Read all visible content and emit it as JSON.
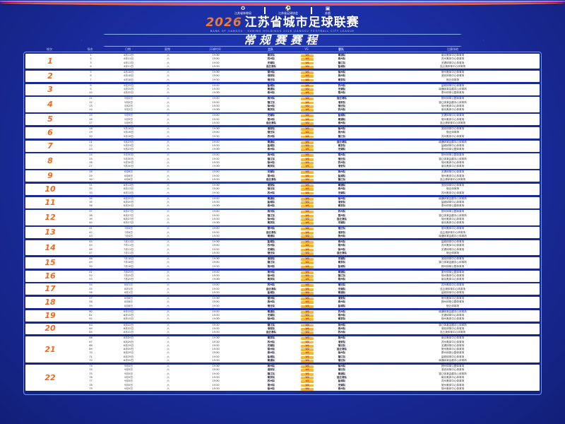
{
  "header": {
    "logos": [
      "江苏省体育局",
      "江苏省足球协会",
      "苏超"
    ],
    "year": "2026",
    "title": "江苏省城市足球联赛",
    "subtitle": "BANK OF JIANGSU · SUNING HOLDINGS 2026 JIANGSU FOOTBALL CITY LEAGUE",
    "banner": "常规赛赛程"
  },
  "colors": {
    "background": "#1a2c9e",
    "accent": "#ef6a1c",
    "vs_badge": "#f6b830"
  },
  "table": {
    "columns": [
      "轮次",
      "场次",
      "日期",
      "星期",
      "开球时间",
      "主队",
      "VS",
      "客队",
      "比赛场地"
    ],
    "vs_label": "VS",
    "rounds": [
      {
        "label": "1",
        "matches": [
          [
            "1",
            "4月11日",
            "六",
            "19:30",
            "南京队",
            "南通队",
            "南京奥体中心体育场"
          ],
          [
            "2",
            "4月11日",
            "六",
            "19:30",
            "苏州队",
            "泰州队",
            "苏州奥体中心体育场"
          ],
          [
            "3",
            "4月11日",
            "六",
            "19:30",
            "无锡队",
            "镇江队",
            "无锡体育中心体育场"
          ],
          [
            "4",
            "4月11日",
            "六",
            "19:30",
            "连云港队",
            "盐城队",
            "连云港体育中心体育场"
          ]
        ]
      },
      {
        "label": "2",
        "matches": [
          [
            "5",
            "4月18日",
            "六",
            "19:30",
            "常州队",
            "徐州队",
            "常州奥体中心体育场"
          ],
          [
            "6",
            "4月18日",
            "六",
            "19:30",
            "淮安队",
            "扬州队",
            "淮安体育中心体育场"
          ],
          [
            "7",
            "4月18日",
            "六",
            "19:30",
            "宿迁队",
            "南京队",
            "宿迁体育场"
          ]
        ]
      },
      {
        "label": "3",
        "matches": [
          [
            "8",
            "4月25日",
            "六",
            "19:30",
            "盐城队",
            "苏州队",
            "盐城体育中心体育场"
          ],
          [
            "9",
            "4月25日",
            "六",
            "19:30",
            "南通队",
            "无锡队",
            "南通体育会展中心体育场"
          ],
          [
            "10",
            "4月25日",
            "六",
            "19:30",
            "泰州队",
            "常州队",
            "泰州体育公园体育场"
          ]
        ]
      },
      {
        "label": "4",
        "matches": [
          [
            "11",
            "5月2日",
            "六",
            "19:30",
            "扬州队",
            "连云港队",
            "扬州体育公园体育场"
          ],
          [
            "12",
            "5月2日",
            "六",
            "19:30",
            "镇江队",
            "淮安队",
            "镇江体育会展中心体育场"
          ],
          [
            "13",
            "5月2日",
            "六",
            "19:30",
            "徐州队",
            "宿迁队",
            "徐州奥体中心体育场"
          ],
          [
            "14",
            "5月2日",
            "六",
            "19:30",
            "南京队",
            "苏州队",
            "南京奥体中心体育场"
          ]
        ]
      },
      {
        "label": "5",
        "matches": [
          [
            "15",
            "5月9日",
            "六",
            "19:30",
            "无锡队",
            "盐城队",
            "无锡体育中心体育场"
          ],
          [
            "16",
            "5月9日",
            "六",
            "19:30",
            "常州队",
            "南通队",
            "常州奥体中心体育场"
          ],
          [
            "17",
            "5月9日",
            "六",
            "19:30",
            "连云港队",
            "泰州队",
            "连云港体育中心体育场"
          ]
        ]
      },
      {
        "label": "6",
        "matches": [
          [
            "18",
            "5月16日",
            "六",
            "19:30",
            "淮安队",
            "徐州队",
            "淮安体育中心体育场"
          ],
          [
            "19",
            "5月16日",
            "六",
            "19:30",
            "宿迁队",
            "扬州队",
            "宿迁体育场"
          ],
          [
            "20",
            "5月16日",
            "六",
            "19:30",
            "苏州队",
            "镇江队",
            "苏州奥体中心体育场"
          ]
        ]
      },
      {
        "label": "7",
        "matches": [
          [
            "21",
            "5月23日",
            "六",
            "19:30",
            "南通队",
            "连云港队",
            "南通体育会展中心体育场"
          ],
          [
            "22",
            "5月23日",
            "六",
            "19:30",
            "盐城队",
            "南京队",
            "盐城体育中心体育场"
          ],
          [
            "23",
            "5月23日",
            "六",
            "19:30",
            "泰州队",
            "无锡队",
            "泰州体育公园体育场"
          ]
        ]
      },
      {
        "label": "8",
        "matches": [
          [
            "24",
            "5月30日",
            "六",
            "19:30",
            "扬州队",
            "常州队",
            "扬州体育公园体育场"
          ],
          [
            "25",
            "5月30日",
            "六",
            "19:30",
            "镇江队",
            "宿迁队",
            "镇江体育会展中心体育场"
          ],
          [
            "26",
            "5月30日",
            "六",
            "19:30",
            "徐州队",
            "苏州队",
            "徐州奥体中心体育场"
          ],
          [
            "27",
            "5月30日",
            "六",
            "19:30",
            "南京队",
            "淮安队",
            "南京奥体中心体育场"
          ]
        ]
      },
      {
        "label": "9",
        "matches": [
          [
            "28",
            "6月6日",
            "六",
            "19:30",
            "无锡队",
            "扬州队",
            "无锡体育中心体育场"
          ],
          [
            "29",
            "6月6日",
            "六",
            "19:30",
            "常州队",
            "盐城队",
            "常州奥体中心体育场"
          ],
          [
            "30",
            "6月6日",
            "六",
            "19:30",
            "连云港队",
            "镇江队",
            "连云港体育中心体育场"
          ]
        ]
      },
      {
        "label": "10",
        "matches": [
          [
            "31",
            "6月13日",
            "六",
            "19:30",
            "淮安队",
            "南通队",
            "淮安体育中心体育场"
          ],
          [
            "32",
            "6月13日",
            "六",
            "19:30",
            "宿迁队",
            "泰州队",
            "宿迁体育场"
          ],
          [
            "33",
            "6月13日",
            "六",
            "19:30",
            "苏州队",
            "无锡队",
            "苏州奥体中心体育场"
          ]
        ]
      },
      {
        "label": "11",
        "matches": [
          [
            "34",
            "6月20日",
            "六",
            "19:30",
            "南通队",
            "徐州队",
            "南通体育会展中心体育场"
          ],
          [
            "35",
            "6月20日",
            "六",
            "19:30",
            "盐城队",
            "淮安队",
            "盐城体育中心体育场"
          ],
          [
            "36",
            "6月20日",
            "六",
            "19:30",
            "泰州队",
            "南京队",
            "泰州体育公园体育场"
          ]
        ]
      },
      {
        "label": "12",
        "matches": [
          [
            "37",
            "6月27日",
            "六",
            "19:30",
            "扬州队",
            "苏州队",
            "扬州体育公园体育场"
          ],
          [
            "38",
            "6月27日",
            "六",
            "19:30",
            "镇江队",
            "常州队",
            "镇江体育会展中心体育场"
          ],
          [
            "39",
            "6月27日",
            "六",
            "19:30",
            "徐州队",
            "连云港队",
            "徐州奥体中心体育场"
          ],
          [
            "40",
            "6月27日",
            "六",
            "19:30",
            "南京队",
            "无锡队",
            "南京奥体中心体育场"
          ]
        ]
      },
      {
        "label": "13",
        "matches": [
          [
            "41",
            "7月4日",
            "六",
            "19:30",
            "常州队",
            "宿迁队",
            "常州奥体中心体育场"
          ],
          [
            "42",
            "7月4日",
            "六",
            "19:30",
            "连云港队",
            "淮安队",
            "连云港体育中心体育场"
          ],
          [
            "43",
            "7月4日",
            "六",
            "19:30",
            "南通队",
            "扬州队",
            "南通体育会展中心体育场"
          ]
        ]
      },
      {
        "label": "14",
        "matches": [
          [
            "44",
            "7月11日",
            "六",
            "19:30",
            "盐城队",
            "泰州队",
            "盐城体育中心体育场"
          ],
          [
            "45",
            "7月11日",
            "六",
            "19:30",
            "苏州队",
            "常州队",
            "苏州奥体中心体育场"
          ],
          [
            "46",
            "7月11日",
            "六",
            "19:30",
            "无锡队",
            "徐州队",
            "无锡体育中心体育场"
          ],
          [
            "47",
            "7月11日",
            "六",
            "19:30",
            "宿迁队",
            "连云港队",
            "宿迁体育场"
          ]
        ]
      },
      {
        "label": "15",
        "matches": [
          [
            "48",
            "7月18日",
            "六",
            "19:30",
            "淮安队",
            "无锡队",
            "淮安体育中心体育场"
          ],
          [
            "49",
            "7月18日",
            "六",
            "19:30",
            "镇江队",
            "南京队",
            "镇江体育会展中心体育场"
          ],
          [
            "50",
            "7月18日",
            "六",
            "19:30",
            "扬州队",
            "盐城队",
            "扬州体育公园体育场"
          ]
        ]
      },
      {
        "label": "16",
        "matches": [
          [
            "51",
            "7月25日",
            "六",
            "19:30",
            "泰州队",
            "南通队",
            "泰州体育公园体育场"
          ],
          [
            "52",
            "7月25日",
            "六",
            "19:30",
            "徐州队",
            "镇江队",
            "徐州奥体中心体育场"
          ],
          [
            "53",
            "7月25日",
            "六",
            "19:30",
            "南京队",
            "常州队",
            "南京奥体中心体育场"
          ]
        ]
      },
      {
        "label": "17",
        "matches": [
          [
            "54",
            "8月1日",
            "六",
            "19:30",
            "苏州队",
            "宿迁队",
            "苏州奥体中心体育场"
          ],
          [
            "55",
            "8月1日",
            "六",
            "19:30",
            "连云港队",
            "无锡队",
            "连云港体育中心体育场"
          ],
          [
            "56",
            "8月1日",
            "六",
            "19:30",
            "盐城队",
            "南通队",
            "盐城体育中心体育场"
          ]
        ]
      },
      {
        "label": "18",
        "matches": [
          [
            "57",
            "8月8日",
            "六",
            "19:30",
            "常州队",
            "淮安队",
            "常州奥体中心体育场"
          ],
          [
            "58",
            "8月8日",
            "六",
            "19:30",
            "扬州队",
            "泰州队",
            "扬州体育公园体育场"
          ],
          [
            "59",
            "8月8日",
            "六",
            "19:30",
            "宿迁队",
            "盐城队",
            "宿迁体育场"
          ]
        ]
      },
      {
        "label": "19",
        "matches": [
          [
            "60",
            "8月15日",
            "六",
            "19:30",
            "南通队",
            "苏州队",
            "南通体育会展中心体育场"
          ],
          [
            "61",
            "8月15日",
            "六",
            "19:30",
            "无锡队",
            "常州队",
            "无锡体育中心体育场"
          ],
          [
            "62",
            "8月15日",
            "六",
            "19:30",
            "徐州队",
            "南京队",
            "徐州奥体中心体育场"
          ]
        ]
      },
      {
        "label": "20",
        "matches": [
          [
            "63",
            "8月22日",
            "六",
            "19:30",
            "镇江队",
            "扬州队",
            "镇江体育会展中心体育场"
          ],
          [
            "64",
            "8月22日",
            "六",
            "19:30",
            "淮安队",
            "泰州队",
            "淮安体育中心体育场"
          ],
          [
            "65",
            "8月22日",
            "六",
            "19:30",
            "连云港队",
            "苏州队",
            "连云港体育中心体育场"
          ]
        ]
      },
      {
        "label": "21",
        "matches": [
          [
            "66",
            "8月29日",
            "六",
            "19:30",
            "南京队",
            "扬州队",
            "南京奥体中心体育场"
          ],
          [
            "67",
            "8月29日",
            "六",
            "19:30",
            "苏州队",
            "淮安队",
            "苏州奥体中心体育场"
          ],
          [
            "68",
            "8月29日",
            "六",
            "19:30",
            "无锡队",
            "宿迁队",
            "无锡体育中心体育场"
          ],
          [
            "69",
            "8月29日",
            "六",
            "19:30",
            "常州队",
            "连云港队",
            "常州奥体中心体育场"
          ],
          [
            "70",
            "8月29日",
            "六",
            "19:30",
            "泰州队",
            "徐州队",
            "泰州体育公园体育场"
          ],
          [
            "71",
            "8月29日",
            "六",
            "19:30",
            "盐城队",
            "镇江队",
            "盐城体育中心体育场"
          ],
          [
            "72",
            "8月29日",
            "六",
            "19:30",
            "南通队",
            "宿迁队",
            "南通体育会展中心体育场"
          ]
        ]
      },
      {
        "label": "22",
        "matches": [
          [
            "73",
            "9月5日",
            "六",
            "19:30",
            "扬州队",
            "徐州队",
            "扬州体育公园体育场"
          ],
          [
            "74",
            "9月5日",
            "六",
            "19:30",
            "淮安队",
            "宿迁队",
            "淮安体育中心体育场"
          ],
          [
            "75",
            "9月5日",
            "六",
            "19:30",
            "镇江队",
            "南通队",
            "镇江体育会展中心体育场"
          ],
          [
            "76",
            "9月5日",
            "六",
            "19:30",
            "南京队",
            "连云港队",
            "南京奥体中心体育场"
          ],
          [
            "77",
            "9月5日",
            "六",
            "19:30",
            "苏州队",
            "盐城队",
            "苏州奥体中心体育场"
          ],
          [
            "78",
            "9月5日",
            "六",
            "19:30",
            "常州队",
            "无锡队",
            "常州奥体中心体育场"
          ],
          [
            "79",
            "9月5日",
            "六",
            "19:30",
            "徐州队",
            "泰州队",
            "徐州奥体中心体育场"
          ]
        ]
      }
    ]
  }
}
